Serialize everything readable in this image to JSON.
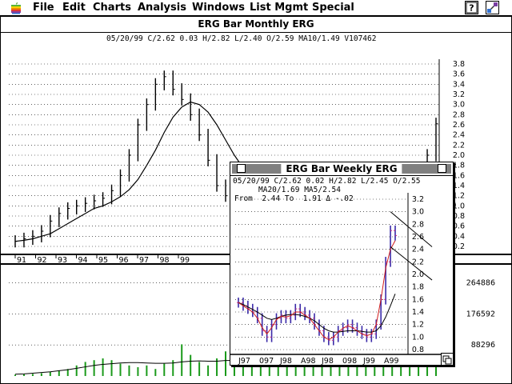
{
  "menubar": {
    "items": [
      "File",
      "Edit",
      "Charts",
      "Analysis",
      "Windows",
      "List Mgmt",
      "Special"
    ]
  },
  "monthly_window": {
    "title": "ERG Bar Monthly  ERG",
    "info_line": "05/20/99 C/2.62 0.03 H/2.82 L/2.40 O/2.59 MA10/1.49 V107462"
  },
  "weekly_window": {
    "title": "ERG Bar Weekly  ERG",
    "info_line1": "05/20/99 C/2.62 0.02 H/2.82 L/2.45 O/2.55",
    "info_line2": "MA20/1.69 MA5/2.54",
    "info_line3": "From  2.44 To  1.91 Δ -.02"
  },
  "chart_data": [
    {
      "type": "bar",
      "title": "ERG Bar Monthly  ERG",
      "x_ticks": [
        "91",
        "92",
        "93",
        "94",
        "95",
        "96",
        "97",
        "98",
        "99"
      ],
      "y_ticks": [
        "3.8",
        "3.6",
        "3.4",
        "3.2",
        "3.0",
        "2.8",
        "2.6",
        "2.4",
        "2.2",
        "2.0",
        "1.8",
        "1.6",
        "1.4",
        "1.2",
        "1.0",
        "0.8",
        "0.6",
        "0.4",
        "0.2"
      ],
      "ylim": [
        0.2,
        3.8
      ],
      "close": [
        0.3,
        0.35,
        0.4,
        0.5,
        0.7,
        0.85,
        0.95,
        1.0,
        1.05,
        1.1,
        1.15,
        1.3,
        1.6,
        2.0,
        2.6,
        3.0,
        3.4,
        3.55,
        3.3,
        3.1,
        2.8,
        2.4,
        1.9,
        1.4,
        1.2,
        1.3,
        1.4,
        1.5,
        1.35,
        1.25,
        1.4,
        1.55,
        1.6,
        1.45,
        1.4,
        1.5,
        1.55,
        1.3,
        1.2,
        1.1,
        1.0,
        1.05,
        1.0,
        0.95,
        1.0,
        1.1,
        1.2,
        2.0,
        2.62
      ],
      "moving_average": {
        "name": "MA10",
        "values": [
          0.3,
          0.32,
          0.35,
          0.4,
          0.45,
          0.55,
          0.65,
          0.75,
          0.85,
          0.95,
          1.0,
          1.08,
          1.18,
          1.32,
          1.52,
          1.8,
          2.1,
          2.45,
          2.75,
          2.95,
          3.05,
          3.0,
          2.85,
          2.6,
          2.3,
          2.0,
          1.75,
          1.55,
          1.45,
          1.4,
          1.38,
          1.4,
          1.42,
          1.44,
          1.44,
          1.42,
          1.4,
          1.36,
          1.32,
          1.26,
          1.2,
          1.15,
          1.1,
          1.06,
          1.04,
          1.06,
          1.1,
          1.22,
          1.49
        ]
      },
      "annotation_lines": [
        {
          "from": [
            27,
            1.82
          ],
          "to": [
            48,
            1.82
          ]
        },
        {
          "from": [
            30,
            1.02
          ],
          "to": [
            48,
            1.02
          ]
        }
      ],
      "volume": {
        "y_ticks": [
          "264886",
          "176592",
          "88296"
        ],
        "values": [
          4000,
          5000,
          6000,
          8000,
          12000,
          15000,
          20000,
          30000,
          40000,
          45000,
          50000,
          45000,
          35000,
          30000,
          25000,
          30000,
          20000,
          35000,
          45000,
          90000,
          60000,
          40000,
          30000,
          50000,
          70000,
          40000,
          30000,
          25000,
          60000,
          80000,
          40000,
          35000,
          100000,
          60000,
          45000,
          40000,
          70000,
          50000,
          120000,
          90000,
          80000,
          95000,
          110000,
          60000,
          50000,
          80000,
          100000,
          300000,
          240000
        ],
        "moving_average": [
          5000,
          6000,
          8000,
          10000,
          12000,
          15000,
          18000,
          22000,
          26000,
          30000,
          33000,
          35000,
          37000,
          38000,
          38000,
          37000,
          36000,
          36000,
          37000,
          40000,
          42000,
          43000,
          42000,
          42000,
          44000,
          44000,
          43000,
          42000,
          43000,
          45000,
          46000,
          46000,
          50000,
          51000,
          51000,
          51000,
          52000,
          52000,
          56000,
          58000,
          60000,
          62000,
          64000,
          64000,
          64000,
          65000,
          67000,
          80000,
          90000
        ]
      }
    },
    {
      "type": "bar",
      "title": "ERG Bar Weekly  ERG",
      "x_ticks": [
        "J97",
        "097",
        "J98",
        "A98",
        "J98",
        "098",
        "J99",
        "A99"
      ],
      "y_ticks": [
        "3.2",
        "3.0",
        "2.8",
        "2.6",
        "2.4",
        "2.2",
        "2.0",
        "1.8",
        "1.6",
        "1.4",
        "1.2",
        "1.0",
        "0.8"
      ],
      "ylim": [
        0.8,
        3.2
      ],
      "close": [
        1.55,
        1.5,
        1.45,
        1.4,
        1.3,
        1.1,
        1.0,
        1.2,
        1.3,
        1.35,
        1.3,
        1.35,
        1.45,
        1.4,
        1.35,
        1.3,
        1.2,
        1.1,
        1.0,
        0.95,
        1.0,
        1.1,
        1.15,
        1.2,
        1.15,
        1.1,
        1.05,
        1.0,
        1.05,
        1.2,
        1.6,
        2.2,
        2.7,
        2.62
      ],
      "moving_average": {
        "name": "MA20",
        "values": [
          1.55,
          1.52,
          1.48,
          1.44,
          1.4,
          1.35,
          1.3,
          1.28,
          1.3,
          1.33,
          1.35,
          1.36,
          1.36,
          1.35,
          1.33,
          1.3,
          1.26,
          1.2,
          1.14,
          1.1,
          1.08,
          1.08,
          1.09,
          1.1,
          1.1,
          1.1,
          1.09,
          1.08,
          1.08,
          1.1,
          1.18,
          1.32,
          1.5,
          1.69
        ]
      },
      "short_average": {
        "name": "MA5",
        "values": [
          1.55,
          1.5,
          1.45,
          1.4,
          1.3,
          1.15,
          1.05,
          1.15,
          1.28,
          1.33,
          1.32,
          1.34,
          1.4,
          1.4,
          1.35,
          1.3,
          1.2,
          1.1,
          1.0,
          0.96,
          1.0,
          1.08,
          1.14,
          1.18,
          1.15,
          1.1,
          1.05,
          1.02,
          1.05,
          1.2,
          1.6,
          2.1,
          2.4,
          2.54
        ]
      },
      "annotation_lines": [
        {
          "from": [
            32,
            3.0
          ],
          "to": [
            35,
            2.44
          ]
        },
        {
          "from": [
            32,
            2.44
          ],
          "to": [
            35,
            1.91
          ]
        }
      ]
    }
  ]
}
